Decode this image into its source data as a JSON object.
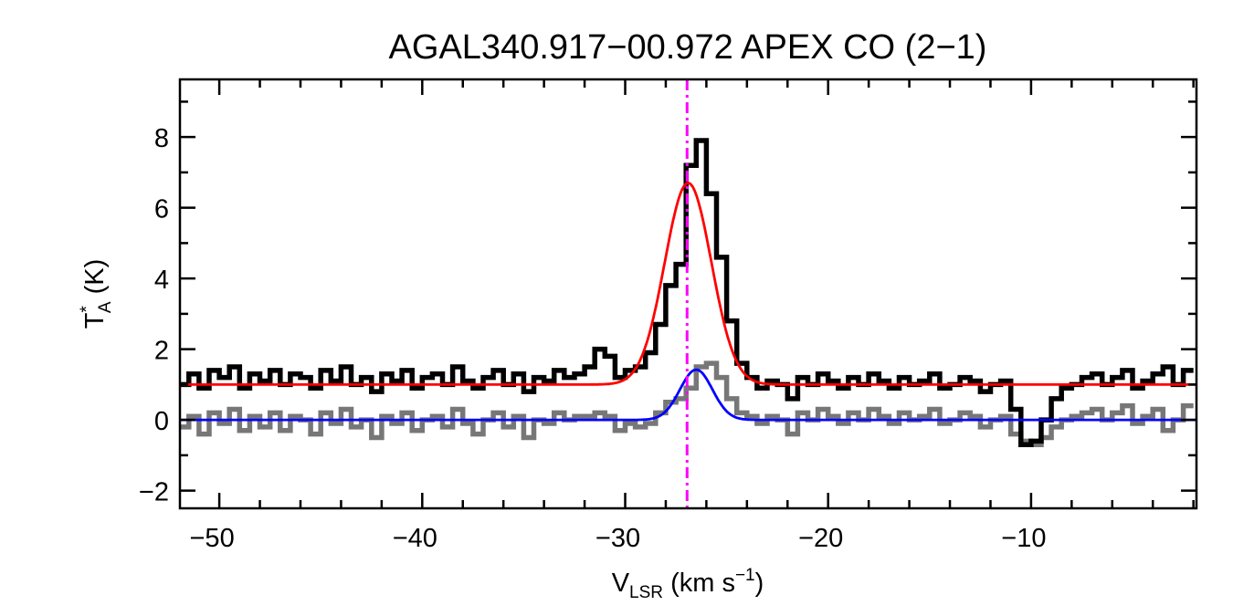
{
  "chart_data": {
    "type": "line",
    "title": "AGAL340.917−00.972  APEX CO (2−1)",
    "xlabel": {
      "main": "V",
      "sub": "LSR",
      "rest": " (km s",
      "sup": "−1",
      "end": ")"
    },
    "ylabel": {
      "main": "T",
      "sup": "*",
      "sub": "A",
      "rest": " (K)"
    },
    "xlim": [
      -51.94,
      -1.85
    ],
    "ylim": [
      -2.5,
      9.63
    ],
    "xticks": [
      -50,
      -40,
      -30,
      -20,
      -10
    ],
    "xtick_labels": [
      "−50",
      "−40",
      "−30",
      "−20",
      "−10"
    ],
    "yticks": [
      -2,
      0,
      2,
      4,
      6,
      8
    ],
    "ytick_labels": [
      "−2",
      "0",
      "2",
      "4",
      "6",
      "8"
    ],
    "x_minor_step": 2,
    "y_minor_step": 1,
    "x_start": -51.75,
    "x_step": 0.5,
    "series": [
      {
        "name": "spectrum",
        "style": "histogram",
        "color": "#000000",
        "values": [
          1.0,
          1.3,
          0.9,
          1.4,
          1.2,
          1.5,
          0.9,
          1.3,
          1.1,
          1.4,
          1.0,
          1.3,
          1.2,
          0.9,
          1.4,
          1.1,
          1.5,
          1.0,
          1.2,
          0.8,
          1.3,
          1.1,
          1.4,
          0.9,
          1.2,
          1.3,
          1.0,
          1.5,
          1.1,
          0.9,
          1.2,
          1.4,
          1.0,
          1.3,
          0.8,
          1.2,
          1.1,
          1.4,
          1.2,
          1.3,
          1.5,
          2.0,
          1.8,
          1.2,
          1.4,
          1.5,
          1.9,
          2.7,
          3.8,
          4.4,
          7.2,
          7.9,
          6.4,
          4.6,
          2.8,
          1.6,
          1.2,
          0.9,
          1.1,
          1.0,
          0.6,
          1.2,
          1.0,
          1.3,
          1.1,
          0.9,
          1.2,
          1.0,
          1.3,
          1.1,
          0.9,
          1.2,
          1.0,
          1.1,
          1.3,
          0.9,
          1.0,
          1.2,
          1.1,
          0.8,
          1.0,
          1.1,
          0.3,
          -0.7,
          -0.6,
          0.0,
          0.6,
          0.9,
          1.0,
          1.2,
          1.3,
          1.0,
          1.2,
          1.4,
          0.9,
          1.1,
          1.3,
          1.5,
          1.0,
          1.4
        ]
      },
      {
        "name": "residual",
        "style": "histogram",
        "color": "#777777",
        "values": [
          -0.2,
          0.1,
          -0.4,
          0.2,
          -0.1,
          0.3,
          -0.3,
          0.1,
          -0.2,
          0.2,
          -0.3,
          0.1,
          0,
          -0.4,
          0.2,
          -0.1,
          0.3,
          -0.2,
          0,
          -0.5,
          0.1,
          -0.1,
          0.2,
          -0.3,
          0,
          0.1,
          -0.2,
          0.3,
          -0.1,
          -0.4,
          0,
          0.2,
          -0.2,
          0.1,
          -0.5,
          0,
          -0.1,
          0.2,
          0,
          0.1,
          0.1,
          0.2,
          0.1,
          -0.3,
          -0.1,
          -0.2,
          -0.1,
          0.2,
          0.5,
          0.6,
          0.9,
          1.5,
          1.6,
          1.2,
          0.6,
          0.2,
          0.1,
          -0.1,
          0.1,
          0,
          -0.4,
          0.2,
          0,
          0.3,
          0.1,
          -0.1,
          0.2,
          0,
          0.3,
          0.1,
          -0.1,
          0.2,
          0,
          0.1,
          0.3,
          -0.1,
          0,
          0.2,
          0.1,
          -0.2,
          0,
          0.1,
          -0.4,
          -0.6,
          -0.7,
          -0.5,
          -0.2,
          0,
          0.1,
          0.2,
          0.3,
          0,
          0.2,
          0.4,
          -0.1,
          0.1,
          0.3,
          -0.3,
          0,
          0.4
        ]
      }
    ],
    "fits": [
      {
        "name": "gaussian-fit",
        "color": "#ff0000",
        "baseline": 1.0,
        "amplitude": 5.7,
        "center": -26.9,
        "sigma": 1.15
      },
      {
        "name": "residual-gaussian-fit",
        "color": "#0000ff",
        "baseline": 0.0,
        "amplitude": 1.42,
        "center": -26.5,
        "sigma": 0.8
      }
    ],
    "vline": {
      "name": "source-velocity",
      "x": -26.95,
      "color": "#ff00ff",
      "style": "dash-dot"
    }
  }
}
